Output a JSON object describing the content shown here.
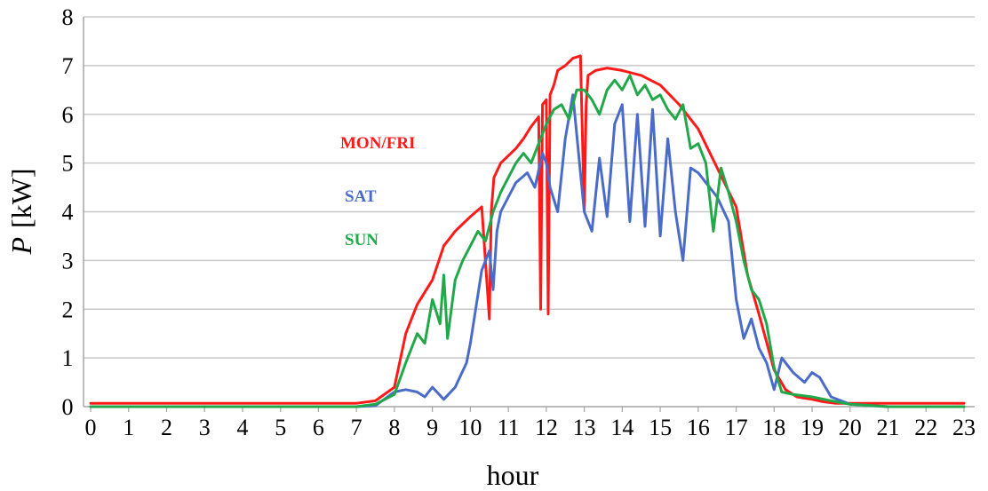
{
  "chart_data": {
    "type": "line",
    "xlabel": "hour",
    "ylabel_var": "P",
    "ylabel_unit": "[kW]",
    "xlim": [
      0,
      23
    ],
    "ylim": [
      0,
      8
    ],
    "x_ticks": [
      "0",
      "1",
      "2",
      "3",
      "4",
      "5",
      "6",
      "7",
      "8",
      "9",
      "10",
      "11",
      "12",
      "13",
      "14",
      "15",
      "16",
      "17",
      "18",
      "19",
      "20",
      "21",
      "22",
      "23"
    ],
    "y_ticks": [
      "0",
      "1",
      "2",
      "3",
      "4",
      "5",
      "6",
      "7",
      "8"
    ],
    "grid": "horizontal",
    "series": [
      {
        "name": "MON/FRI",
        "color": "#ff1a1a",
        "x": [
          0,
          1,
          2,
          3,
          4,
          5,
          6,
          7,
          7.5,
          8,
          8.3,
          8.6,
          9,
          9.3,
          9.6,
          10,
          10.3,
          10.5,
          10.55,
          10.62,
          10.8,
          11,
          11.2,
          11.4,
          11.6,
          11.8,
          11.85,
          11.9,
          12,
          12.05,
          12.1,
          12.2,
          12.3,
          12.5,
          12.7,
          12.9,
          13,
          13.05,
          13.1,
          13.3,
          13.6,
          14,
          14.5,
          15,
          15.5,
          16,
          16.5,
          17,
          17.3,
          17.6,
          18,
          18.3,
          18.6,
          19,
          19.3,
          19.6,
          20,
          21,
          22,
          23
        ],
        "y": [
          0.07,
          0.07,
          0.07,
          0.07,
          0.07,
          0.07,
          0.07,
          0.07,
          0.12,
          0.4,
          1.5,
          2.1,
          2.6,
          3.3,
          3.6,
          3.9,
          4.1,
          1.8,
          4.0,
          4.7,
          5.0,
          5.15,
          5.3,
          5.5,
          5.75,
          5.95,
          2.0,
          6.2,
          6.3,
          1.9,
          6.4,
          6.6,
          6.9,
          7.0,
          7.15,
          7.2,
          4.0,
          6.2,
          6.8,
          6.9,
          6.95,
          6.9,
          6.8,
          6.6,
          6.2,
          5.7,
          4.9,
          4.1,
          2.7,
          1.9,
          0.75,
          0.35,
          0.2,
          0.15,
          0.1,
          0.07,
          0.07,
          0.07,
          0.07,
          0.07
        ]
      },
      {
        "name": "SAT",
        "color": "#4a6cc8",
        "x": [
          0,
          1,
          2,
          3,
          4,
          5,
          6,
          7,
          7.5,
          8,
          8.3,
          8.6,
          8.8,
          9,
          9.3,
          9.6,
          9.9,
          10,
          10.3,
          10.5,
          10.6,
          10.7,
          10.8,
          11,
          11.2,
          11.5,
          11.7,
          11.9,
          12,
          12.1,
          12.3,
          12.5,
          12.7,
          12.9,
          13,
          13.2,
          13.4,
          13.6,
          13.8,
          14,
          14.2,
          14.4,
          14.6,
          14.8,
          15,
          15.2,
          15.4,
          15.6,
          15.8,
          16,
          16.2,
          16.5,
          16.8,
          17,
          17.2,
          17.4,
          17.6,
          17.8,
          18,
          18.2,
          18.5,
          18.8,
          19,
          19.2,
          19.5,
          20,
          21,
          22,
          23
        ],
        "y": [
          0,
          0,
          0,
          0,
          0,
          0,
          0,
          0,
          0.02,
          0.3,
          0.35,
          0.3,
          0.2,
          0.4,
          0.15,
          0.4,
          0.9,
          1.3,
          2.8,
          3.2,
          2.4,
          3.6,
          4.0,
          4.3,
          4.6,
          4.8,
          4.5,
          5.2,
          5.0,
          4.5,
          4.0,
          5.5,
          6.4,
          4.8,
          4.0,
          3.6,
          5.1,
          3.9,
          5.8,
          6.2,
          3.8,
          6.0,
          3.7,
          6.1,
          3.5,
          5.5,
          4.0,
          3.0,
          4.9,
          4.8,
          4.6,
          4.3,
          3.8,
          2.2,
          1.4,
          1.8,
          1.2,
          0.9,
          0.35,
          1.0,
          0.7,
          0.5,
          0.7,
          0.6,
          0.2,
          0.05,
          0,
          0,
          0
        ]
      },
      {
        "name": "SUN",
        "color": "#22a84a",
        "x": [
          0,
          1,
          2,
          3,
          4,
          5,
          6,
          7,
          7.5,
          8,
          8.3,
          8.6,
          8.8,
          9,
          9.2,
          9.3,
          9.4,
          9.6,
          9.8,
          10,
          10.2,
          10.4,
          10.6,
          10.8,
          11,
          11.2,
          11.4,
          11.6,
          11.8,
          12,
          12.2,
          12.4,
          12.6,
          12.8,
          13,
          13.2,
          13.4,
          13.6,
          13.8,
          14,
          14.2,
          14.4,
          14.6,
          14.8,
          15,
          15.2,
          15.4,
          15.6,
          15.8,
          16,
          16.2,
          16.4,
          16.6,
          16.8,
          17,
          17.2,
          17.4,
          17.6,
          17.8,
          18,
          18.2,
          18.5,
          19,
          19.5,
          20,
          21,
          22,
          23
        ],
        "y": [
          0,
          0,
          0,
          0,
          0,
          0,
          0,
          0,
          0.05,
          0.25,
          0.9,
          1.5,
          1.3,
          2.2,
          1.7,
          2.7,
          1.4,
          2.6,
          3.0,
          3.3,
          3.6,
          3.4,
          4.0,
          4.4,
          4.7,
          5.0,
          5.2,
          5.0,
          5.4,
          5.8,
          6.1,
          6.2,
          5.9,
          6.5,
          6.5,
          6.3,
          6.0,
          6.5,
          6.7,
          6.5,
          6.8,
          6.4,
          6.6,
          6.3,
          6.4,
          6.1,
          5.9,
          6.2,
          5.3,
          5.4,
          5.0,
          3.6,
          4.9,
          4.4,
          3.8,
          3.0,
          2.4,
          2.2,
          1.7,
          0.8,
          0.3,
          0.25,
          0.2,
          0.12,
          0.05,
          0,
          0,
          0
        ]
      }
    ]
  }
}
